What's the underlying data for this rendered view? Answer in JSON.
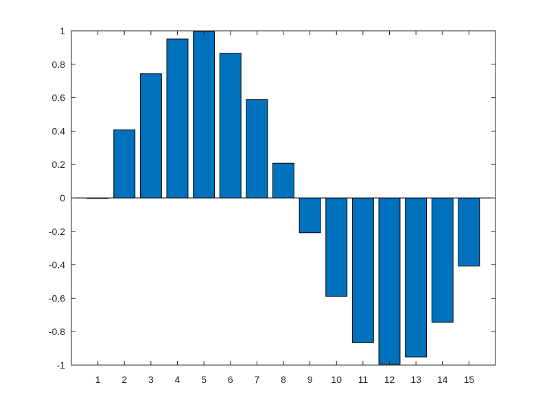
{
  "chart_data": {
    "type": "bar",
    "categories": [
      "1",
      "2",
      "3",
      "4",
      "5",
      "6",
      "7",
      "8",
      "9",
      "10",
      "11",
      "12",
      "13",
      "14",
      "15"
    ],
    "values": [
      0,
      0.407,
      0.743,
      0.951,
      0.995,
      0.866,
      0.588,
      0.208,
      -0.208,
      -0.588,
      -0.866,
      -0.995,
      -0.951,
      -0.743,
      -0.407
    ],
    "yticks": [
      -1,
      -0.8,
      -0.6,
      -0.4,
      -0.2,
      0,
      0.2,
      0.4,
      0.6,
      0.8,
      1
    ],
    "ylim": [
      -1,
      1
    ],
    "xlim": [
      0,
      16
    ],
    "title": "",
    "xlabel": "",
    "ylabel": "",
    "grid": false,
    "legend": "none",
    "colors": {
      "bar_fill": "#0072BD",
      "bar_edge": "#000000",
      "axis": "#262626",
      "background": "#ffffff"
    }
  }
}
